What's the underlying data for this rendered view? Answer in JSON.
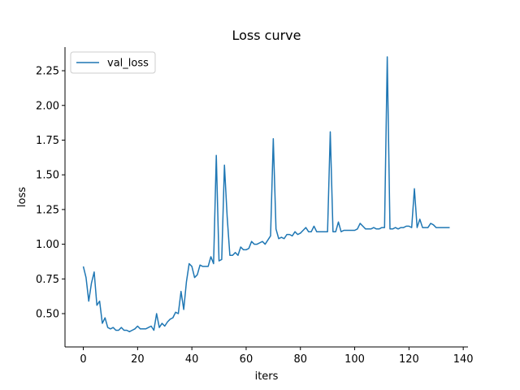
{
  "chart_data": {
    "type": "line",
    "title": "Loss curve",
    "xlabel": "iters",
    "ylabel": "loss",
    "xlim": [
      -6.75,
      141.75
    ],
    "ylim": [
      0.26,
      2.42
    ],
    "xticks": [
      0,
      20,
      40,
      60,
      80,
      100,
      120,
      140
    ],
    "yticks": [
      0.5,
      0.75,
      1.0,
      1.25,
      1.5,
      1.75,
      2.0,
      2.25
    ],
    "xtick_labels": [
      "0",
      "20",
      "40",
      "60",
      "80",
      "100",
      "120",
      "140"
    ],
    "ytick_labels": [
      "0.50",
      "0.75",
      "1.00",
      "1.25",
      "1.50",
      "1.75",
      "2.00",
      "2.25"
    ],
    "grid": false,
    "legend_position": "top-left",
    "series": [
      {
        "name": "val_loss",
        "color": "#1f77b4",
        "x": [
          0,
          1,
          2,
          3,
          4,
          5,
          6,
          7,
          8,
          9,
          10,
          11,
          12,
          13,
          14,
          15,
          16,
          17,
          18,
          19,
          20,
          21,
          22,
          23,
          24,
          25,
          26,
          27,
          28,
          29,
          30,
          31,
          32,
          33,
          34,
          35,
          36,
          37,
          38,
          39,
          40,
          41,
          42,
          43,
          44,
          45,
          46,
          47,
          48,
          49,
          50,
          51,
          52,
          53,
          54,
          55,
          56,
          57,
          58,
          59,
          60,
          61,
          62,
          63,
          64,
          65,
          66,
          67,
          68,
          69,
          70,
          71,
          72,
          73,
          74,
          75,
          76,
          77,
          78,
          79,
          80,
          81,
          82,
          83,
          84,
          85,
          86,
          87,
          88,
          89,
          90,
          91,
          92,
          93,
          94,
          95,
          96,
          97,
          98,
          99,
          100,
          101,
          102,
          103,
          104,
          105,
          106,
          107,
          108,
          109,
          110,
          111,
          112,
          113,
          114,
          115,
          116,
          117,
          118,
          119,
          120,
          121,
          122,
          123,
          124,
          125,
          126,
          127,
          128,
          129,
          130,
          131,
          132,
          133,
          134,
          135
        ],
        "values": [
          0.84,
          0.76,
          0.59,
          0.72,
          0.8,
          0.56,
          0.59,
          0.43,
          0.47,
          0.4,
          0.39,
          0.4,
          0.38,
          0.38,
          0.4,
          0.38,
          0.38,
          0.37,
          0.38,
          0.39,
          0.41,
          0.39,
          0.39,
          0.39,
          0.4,
          0.41,
          0.38,
          0.5,
          0.4,
          0.43,
          0.41,
          0.44,
          0.46,
          0.47,
          0.51,
          0.5,
          0.66,
          0.53,
          0.73,
          0.86,
          0.84,
          0.76,
          0.78,
          0.85,
          0.84,
          0.84,
          0.84,
          0.91,
          0.86,
          1.64,
          0.88,
          0.89,
          1.57,
          1.2,
          0.92,
          0.92,
          0.94,
          0.92,
          0.98,
          0.96,
          0.96,
          0.97,
          1.02,
          1.0,
          1.0,
          1.01,
          1.02,
          1.0,
          1.03,
          1.06,
          1.76,
          1.11,
          1.04,
          1.05,
          1.04,
          1.07,
          1.07,
          1.06,
          1.09,
          1.07,
          1.08,
          1.1,
          1.12,
          1.09,
          1.09,
          1.13,
          1.09,
          1.09,
          1.09,
          1.09,
          1.09,
          1.81,
          1.09,
          1.09,
          1.16,
          1.09,
          1.1,
          1.1,
          1.1,
          1.1,
          1.1,
          1.11,
          1.15,
          1.13,
          1.11,
          1.11,
          1.11,
          1.12,
          1.11,
          1.11,
          1.12,
          1.12,
          2.35,
          1.11,
          1.11,
          1.12,
          1.11,
          1.12,
          1.12,
          1.13,
          1.13,
          1.12,
          1.4,
          1.12,
          1.18,
          1.12,
          1.12,
          1.12,
          1.15,
          1.14,
          1.12,
          1.12,
          1.12,
          1.12,
          1.12,
          1.12
        ]
      }
    ]
  }
}
